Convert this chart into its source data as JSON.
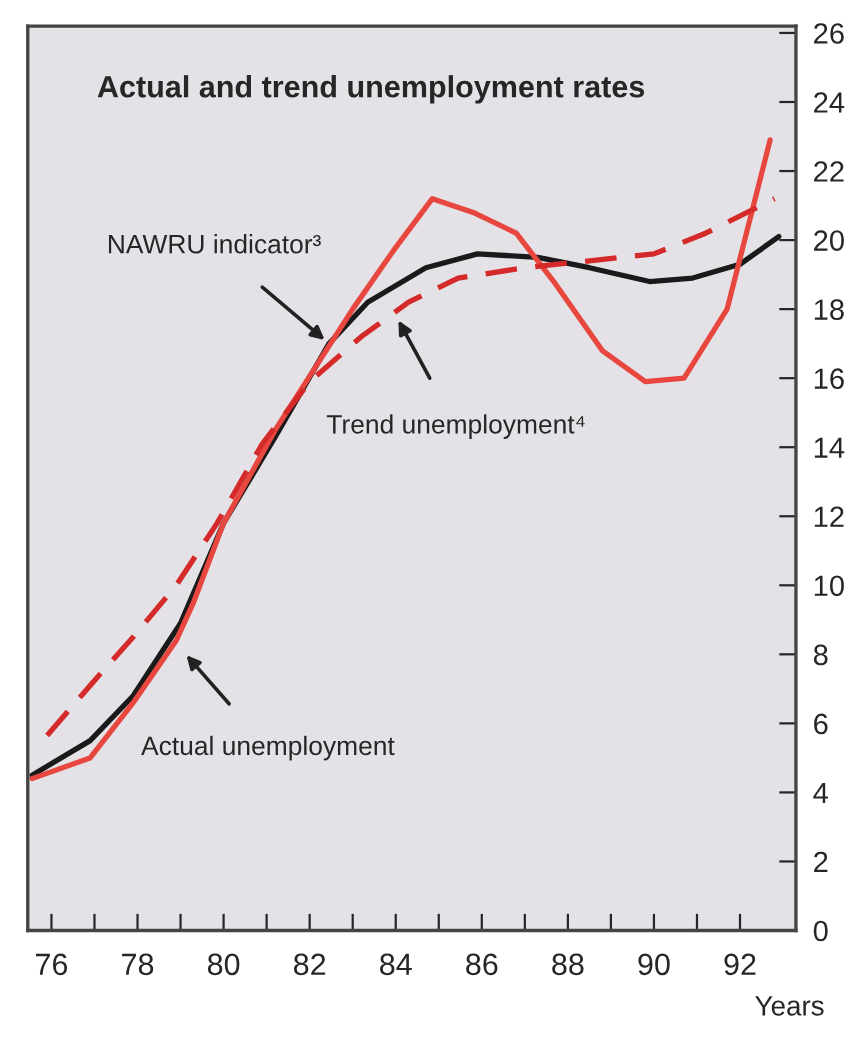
{
  "chart_data": {
    "type": "line",
    "title": "Actual and trend unemployment rates",
    "xlabel": "Years",
    "xlim": [
      75.45,
      93.3
    ],
    "ylim": [
      0,
      26.2
    ],
    "xticks": [
      76,
      {
        "value": 77,
        "label": null
      },
      78,
      {
        "value": 79,
        "label": null
      },
      80,
      {
        "value": 81,
        "label": null
      },
      82,
      {
        "value": 83,
        "label": null
      },
      84,
      {
        "value": 85,
        "label": null
      },
      86,
      {
        "value": 87,
        "label": null
      },
      88,
      {
        "value": 89,
        "label": null
      },
      90,
      {
        "value": 91,
        "label": null
      },
      92
    ],
    "yticks": [
      0,
      2,
      4,
      6,
      8,
      10,
      12,
      14,
      16,
      18,
      20,
      22,
      24,
      26
    ],
    "grid": false,
    "legend": false,
    "series": [
      {
        "color": "#1a1a1a",
        "line_style": "solid",
        "x": [
          75.55,
          76.9,
          77.9,
          79.0,
          80.0,
          81.2,
          82.45,
          83.35,
          84.7,
          85.9,
          87.3,
          88.5,
          89.9,
          90.9,
          92.0,
          92.9
        ],
        "values": [
          4.5,
          5.5,
          6.8,
          8.9,
          11.8,
          14.3,
          17.0,
          18.2,
          19.2,
          19.6,
          19.5,
          19.2,
          18.8,
          18.9,
          19.3,
          20.1
        ]
      },
      {
        "color": "#e8473f",
        "line_style": "solid",
        "x": [
          75.55,
          76.9,
          77.9,
          78.9,
          79.3,
          80.0,
          81.2,
          83.0,
          83.95,
          84.85,
          85.8,
          86.8,
          87.7,
          88.8,
          89.8,
          90.7,
          91.7,
          92.7
        ],
        "values": [
          4.4,
          5.0,
          6.6,
          8.4,
          9.5,
          11.8,
          14.5,
          18.0,
          19.7,
          21.2,
          20.8,
          20.2,
          18.75,
          16.8,
          15.9,
          16.0,
          18.0,
          22.9
        ]
      },
      {
        "color": "#d42a2a",
        "line_style": "dashed",
        "x": [
          75.9,
          76.9,
          77.9,
          78.9,
          79.85,
          80.9,
          82.0,
          83.2,
          84.3,
          85.45,
          87.0,
          88.5,
          90.0,
          91.2,
          92.8
        ],
        "values": [
          5.65,
          7.1,
          8.5,
          10.0,
          11.8,
          14.1,
          15.9,
          17.2,
          18.2,
          18.9,
          19.2,
          19.4,
          19.6,
          20.2,
          21.2
        ]
      }
    ],
    "annotations": [
      {
        "text": "NAWRU indicator³",
        "x": 82.45,
        "y": 17.0
      },
      "Trend unemployment⁴",
      {
        "text": "Actual unemployment",
        "x": 79.05,
        "y": 8.1
      }
    ]
  }
}
